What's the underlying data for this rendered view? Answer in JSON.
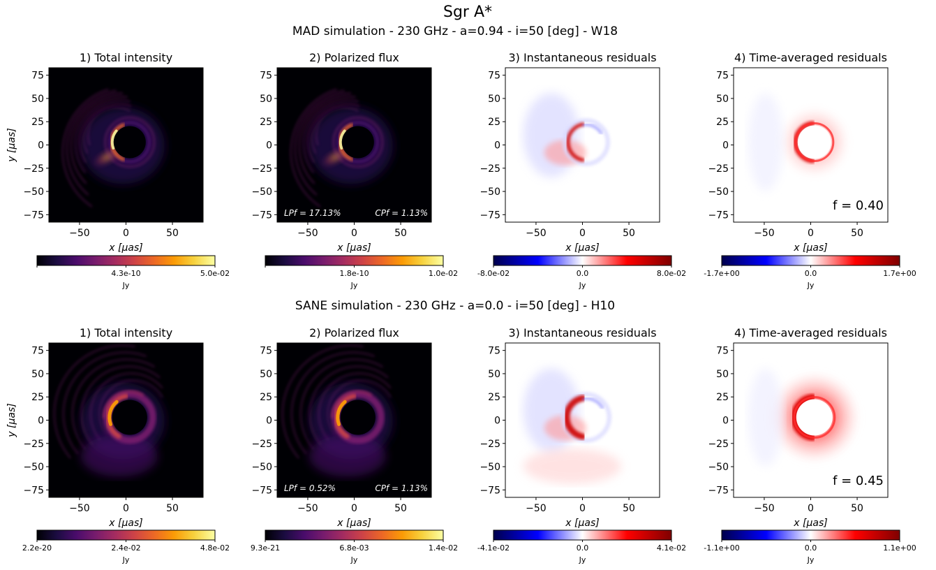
{
  "figure": {
    "title": "Sgr A*",
    "rows": [
      {
        "subtitle": "MAD simulation  -  230 GHz  -  a=0.94   -   i=50 [deg]   -   W18",
        "panels": [
          {
            "title": "1)   Total intensity",
            "colorbar": {
              "ticks": [
                "",
                "4.3e-10",
                "5.0e-02"
              ],
              "label": "Jy"
            }
          },
          {
            "title": "2)   Polarized flux",
            "colorbar": {
              "ticks": [
                "",
                "1.8e-10",
                "1.0e-02"
              ],
              "label": "Jy"
            },
            "annotations": {
              "lpf": "LPf = 17.13%",
              "cpf": "CPf = 1.13%"
            }
          },
          {
            "title": "3)   Instantaneous residuals",
            "colorbar": {
              "ticks": [
                "-8.0e-02",
                "0.0",
                "8.0e-02"
              ],
              "label": "Jy"
            }
          },
          {
            "title": "4)   Time-averaged residuals",
            "colorbar": {
              "ticks": [
                "-1.7e+00",
                "0.0",
                "1.7e+00"
              ],
              "label": "Jy"
            },
            "annotations": {
              "f": "f = 0.40"
            }
          }
        ]
      },
      {
        "subtitle": "SANE simulation  -  230 GHz  -  a=0.0   -   i=50 [deg]   -   H10",
        "panels": [
          {
            "title": "1)   Total intensity",
            "colorbar": {
              "ticks": [
                "2.2e-20",
                "2.4e-02",
                "4.8e-02"
              ],
              "label": "Jy"
            }
          },
          {
            "title": "2)   Polarized flux",
            "colorbar": {
              "ticks": [
                "9.3e-21",
                "6.8e-03",
                "1.4e-02"
              ],
              "label": "Jy"
            },
            "annotations": {
              "lpf": "LPf = 0.52%",
              "cpf": "CPf = 1.13%"
            }
          },
          {
            "title": "3)   Instantaneous residuals",
            "colorbar": {
              "ticks": [
                "-4.1e-02",
                "0.0",
                "4.1e-02"
              ],
              "label": "Jy"
            }
          },
          {
            "title": "4)   Time-averaged residuals",
            "colorbar": {
              "ticks": [
                "-1.1e+00",
                "0.0",
                "1.1e+00"
              ],
              "label": "Jy"
            },
            "annotations": {
              "f": "f = 0.45"
            }
          }
        ]
      }
    ]
  },
  "chart_data": {
    "type": "heatmap",
    "title": "Sgr A*",
    "xlabel": "x [μas]",
    "ylabel": "y [μas]",
    "xlim": [
      -83,
      83
    ],
    "ylim": [
      -83,
      83
    ],
    "xticks": [
      -50,
      0,
      50
    ],
    "yticks": [
      -75,
      -50,
      -25,
      0,
      25,
      50,
      75
    ],
    "colormaps": {
      "panels_1_2": "inferno",
      "panels_3_4": "seismic"
    },
    "colors": {
      "inferno": [
        "#000004",
        "#1b0c41",
        "#4a0c6b",
        "#781c6d",
        "#a52c60",
        "#cf4446",
        "#ed6925",
        "#fb9b06",
        "#f7d13d",
        "#fcffa4"
      ],
      "seismic": [
        "#00004c",
        "#0000ff",
        "#ffffff",
        "#ff0000",
        "#7f0000"
      ]
    }
  }
}
